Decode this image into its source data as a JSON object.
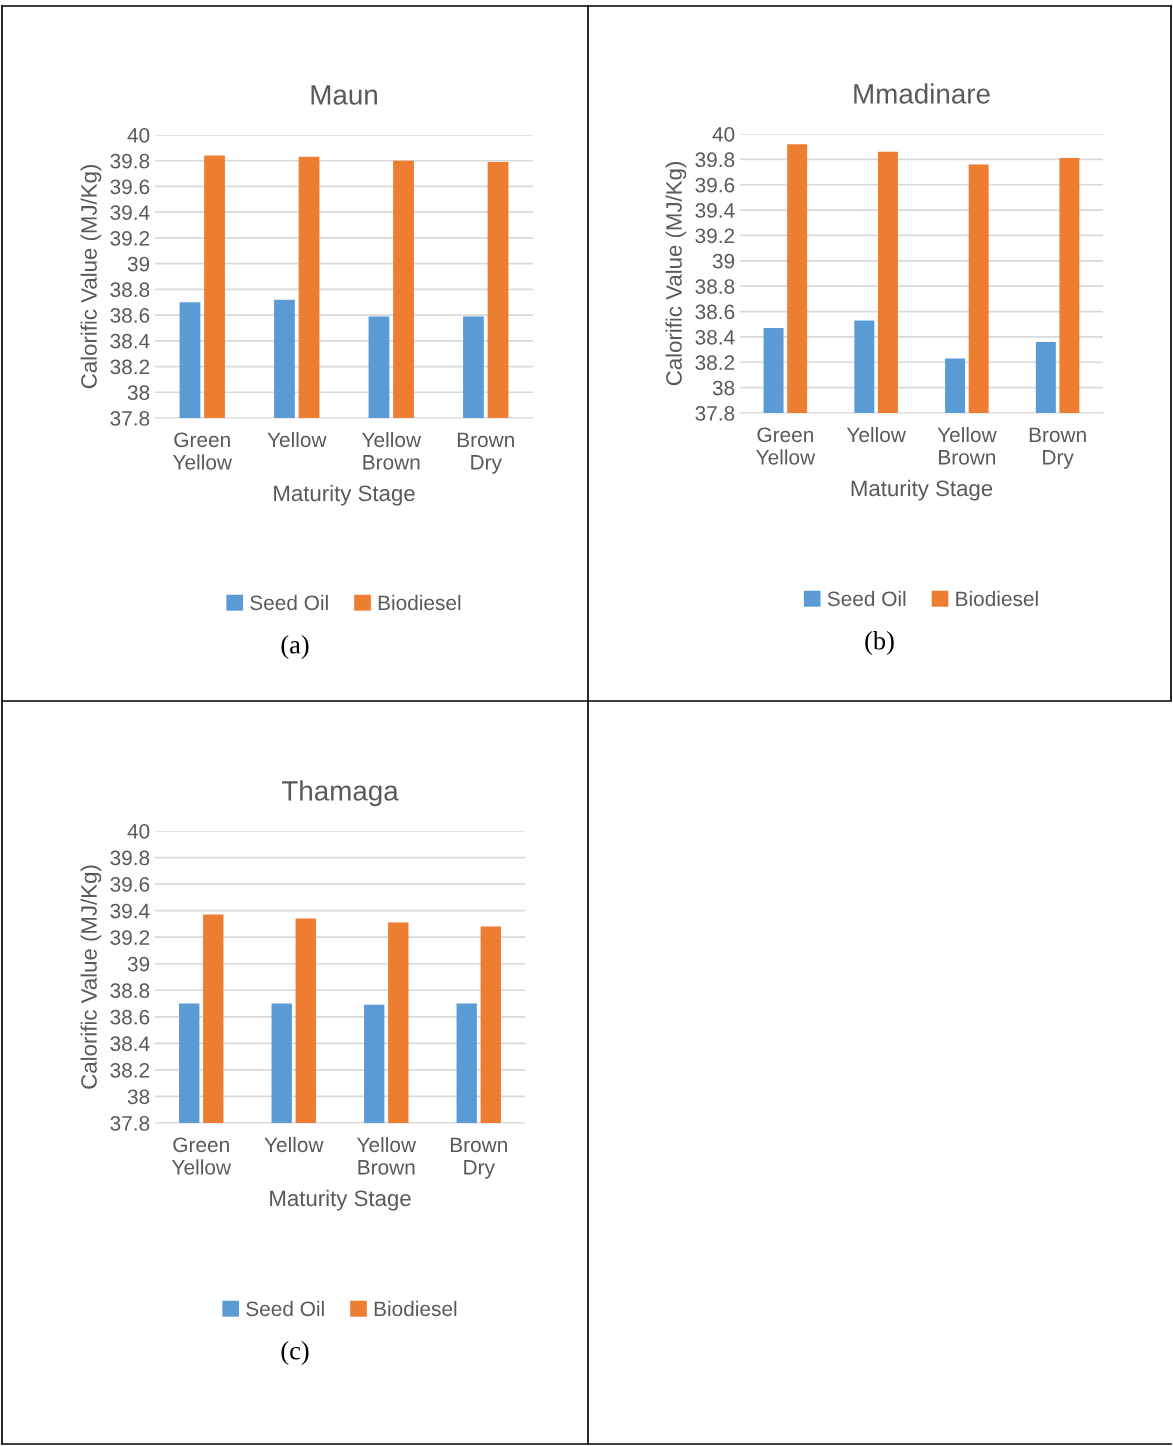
{
  "chart_data": [
    {
      "type": "bar",
      "title": "Maun",
      "xlabel": "Maturity Stage",
      "ylabel": "Calorific Value (MJ/Kg)",
      "categories": [
        "Green\nYellow",
        "Yellow",
        "Yellow\nBrown",
        "Brown\nDry"
      ],
      "ylim": [
        37.8,
        40
      ],
      "yticks": [
        37.8,
        38,
        38.2,
        38.4,
        38.6,
        38.8,
        39,
        39.2,
        39.4,
        39.6,
        39.8,
        40
      ],
      "grid": "y",
      "legend": "bottom",
      "annotations": [
        "(a)"
      ],
      "series": [
        {
          "name": "Seed Oil",
          "color": "#5b9bd5",
          "values": [
            38.7,
            38.72,
            38.59,
            38.59
          ]
        },
        {
          "name": "Biodiesel",
          "color": "#ed7d31",
          "values": [
            39.84,
            39.83,
            39.8,
            39.79
          ]
        }
      ]
    },
    {
      "type": "bar",
      "title": "Mmadinare",
      "xlabel": "Maturity Stage",
      "ylabel": "Calorific Value (MJ/Kg)",
      "categories": [
        "Green\nYellow",
        "Yellow",
        "Yellow\nBrown",
        "Brown\nDry"
      ],
      "ylim": [
        37.8,
        40
      ],
      "yticks": [
        37.8,
        38,
        38.2,
        38.4,
        38.6,
        38.8,
        39,
        39.2,
        39.4,
        39.6,
        39.8,
        40
      ],
      "grid": "y",
      "legend": "bottom",
      "annotations": [
        "(b)"
      ],
      "series": [
        {
          "name": "Seed Oil",
          "color": "#5b9bd5",
          "values": [
            38.47,
            38.53,
            38.23,
            38.36
          ]
        },
        {
          "name": "Biodiesel",
          "color": "#ed7d31",
          "values": [
            39.92,
            39.86,
            39.76,
            39.81
          ]
        }
      ]
    },
    {
      "type": "bar",
      "title": "Thamaga",
      "xlabel": "Maturity Stage",
      "ylabel": "Calorific Value (MJ/Kg)",
      "categories": [
        "Green\nYellow",
        "Yellow",
        "Yellow\nBrown",
        "Brown\nDry"
      ],
      "ylim": [
        37.8,
        40
      ],
      "yticks": [
        37.8,
        38,
        38.2,
        38.4,
        38.6,
        38.8,
        39,
        39.2,
        39.4,
        39.6,
        39.8,
        40
      ],
      "grid": "y",
      "legend": "bottom",
      "annotations": [
        "(c)"
      ],
      "series": [
        {
          "name": "Seed Oil",
          "color": "#5b9bd5",
          "values": [
            38.7,
            38.7,
            38.69,
            38.7
          ]
        },
        {
          "name": "Biodiesel",
          "color": "#ed7d31",
          "values": [
            39.37,
            39.34,
            39.31,
            39.28
          ]
        }
      ]
    }
  ]
}
